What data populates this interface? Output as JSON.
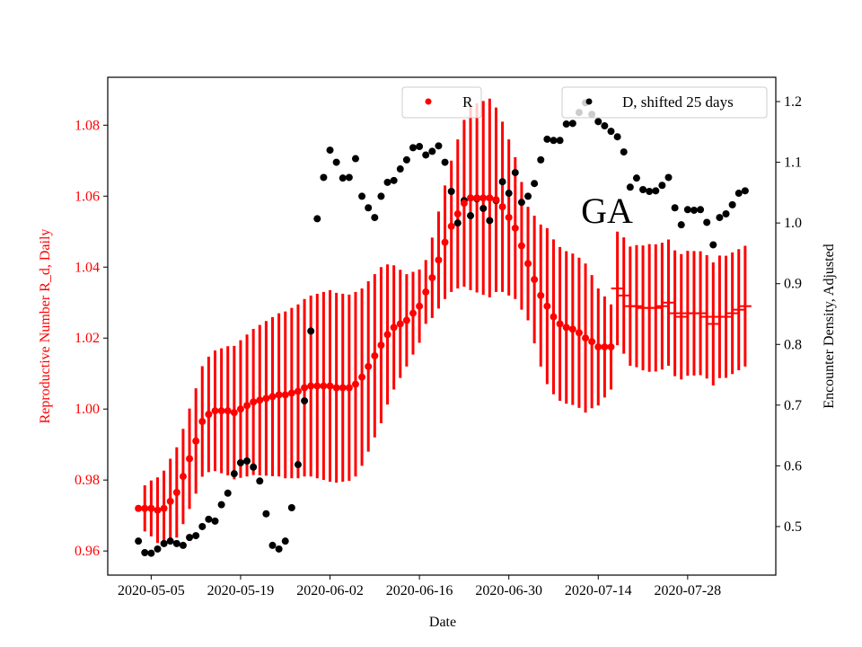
{
  "chart_data": {
    "type": "scatter",
    "annotation": "GA",
    "xlabel": "Date",
    "ylabel_left": "Reproductive Number R_d, Daily",
    "ylabel_right": "Encounter Density, Adjusted",
    "x_start_date": "2020-05-03",
    "x_ticks": [
      "2020-05-05",
      "2020-05-19",
      "2020-06-02",
      "2020-06-16",
      "2020-06-30",
      "2020-07-14",
      "2020-07-28"
    ],
    "x_tick_day_index": [
      2,
      16,
      30,
      44,
      58,
      72,
      86
    ],
    "x_range_days": [
      -4.8,
      99.8
    ],
    "ylim_left": [
      0.9532,
      1.0935
    ],
    "yticks_left": [
      "0.96",
      "0.98",
      "1.00",
      "1.02",
      "1.04",
      "1.06",
      "1.08"
    ],
    "ylim_right": [
      0.42,
      1.24
    ],
    "yticks_right": [
      "0.5",
      "0.6",
      "0.7",
      "0.8",
      "0.9",
      "1.0",
      "1.1",
      "1.2"
    ],
    "colors": {
      "R": "#ff0000",
      "D": "#000000",
      "left_axis": "#ff0000"
    },
    "legend": [
      {
        "label": "R",
        "placement": "top-center"
      },
      {
        "label": "D, shifted 25 days",
        "placement": "top-right"
      }
    ],
    "series": [
      {
        "name": "R",
        "axis": "left",
        "marker_style_until_index": 74,
        "values": [
          0.972,
          0.972,
          0.972,
          0.9715,
          0.972,
          0.974,
          0.9765,
          0.981,
          0.986,
          0.991,
          0.9965,
          0.9985,
          0.9995,
          0.9995,
          0.9995,
          0.999,
          1.0,
          1.001,
          1.002,
          1.0025,
          1.003,
          1.0035,
          1.004,
          1.004,
          1.0045,
          1.005,
          1.006,
          1.0065,
          1.0065,
          1.0065,
          1.0065,
          1.006,
          1.006,
          1.006,
          1.007,
          1.009,
          1.012,
          1.015,
          1.018,
          1.021,
          1.023,
          1.024,
          1.025,
          1.027,
          1.029,
          1.033,
          1.037,
          1.042,
          1.047,
          1.0515,
          1.055,
          1.058,
          1.0595,
          1.0595,
          1.0595,
          1.0595,
          1.059,
          1.057,
          1.054,
          1.051,
          1.046,
          1.041,
          1.0365,
          1.032,
          1.029,
          1.026,
          1.024,
          1.023,
          1.0225,
          1.0215,
          1.02,
          1.019,
          1.0175,
          1.0175,
          1.0175,
          1.034,
          1.032,
          1.029,
          1.029,
          1.0285,
          1.0285,
          1.0285,
          1.029,
          1.03,
          1.027,
          1.026,
          1.027,
          1.027,
          1.027,
          1.026,
          1.024,
          1.026,
          1.026,
          1.027,
          1.028,
          1.029
        ],
        "error_halfwidth_keypoints": [
          [
            0,
            0.0005
          ],
          [
            1,
            0.0065
          ],
          [
            5,
            0.012
          ],
          [
            12,
            0.017
          ],
          [
            22,
            0.023
          ],
          [
            30,
            0.027
          ],
          [
            34,
            0.026
          ],
          [
            38,
            0.022
          ],
          [
            42,
            0.013
          ],
          [
            45,
            0.009
          ],
          [
            48,
            0.016
          ],
          [
            52,
            0.026
          ],
          [
            55,
            0.028
          ],
          [
            58,
            0.022
          ],
          [
            61,
            0.016
          ],
          [
            64,
            0.022
          ],
          [
            70,
            0.021
          ],
          [
            74,
            0.012
          ],
          [
            75,
            0.016
          ],
          [
            80,
            0.018
          ],
          [
            95,
            0.017
          ]
        ]
      },
      {
        "name": "D, shifted 25 days",
        "axis": "right",
        "values": [
          0.476,
          0.457,
          0.456,
          0.463,
          0.472,
          0.476,
          0.472,
          0.469,
          0.482,
          0.485,
          0.5,
          0.512,
          0.509,
          0.536,
          0.555,
          0.587,
          0.605,
          0.608,
          0.598,
          0.575,
          0.521,
          0.469,
          0.463,
          0.476,
          0.531,
          0.602,
          0.707,
          0.822,
          1.007,
          1.075,
          1.12,
          1.1,
          1.074,
          1.075,
          1.106,
          1.044,
          1.025,
          1.009,
          1.044,
          1.067,
          1.07,
          1.089,
          1.104,
          1.124,
          1.126,
          1.112,
          1.118,
          1.127,
          1.1,
          1.052,
          1.0,
          1.037,
          1.012,
          1.04,
          1.024,
          1.004,
          1.037,
          1.068,
          1.049,
          1.083,
          1.034,
          1.044,
          1.065,
          1.104,
          1.138,
          1.136,
          1.136,
          1.163,
          1.164,
          1.182,
          1.198,
          1.179,
          1.167,
          1.16,
          1.151,
          1.142,
          1.117,
          1.059,
          1.074,
          1.055,
          1.052,
          1.053,
          1.062,
          1.075,
          1.025,
          0.997,
          1.022,
          1.021,
          1.022,
          1.001,
          0.964,
          1.009,
          1.015,
          1.03,
          1.049,
          1.053
        ]
      }
    ]
  }
}
